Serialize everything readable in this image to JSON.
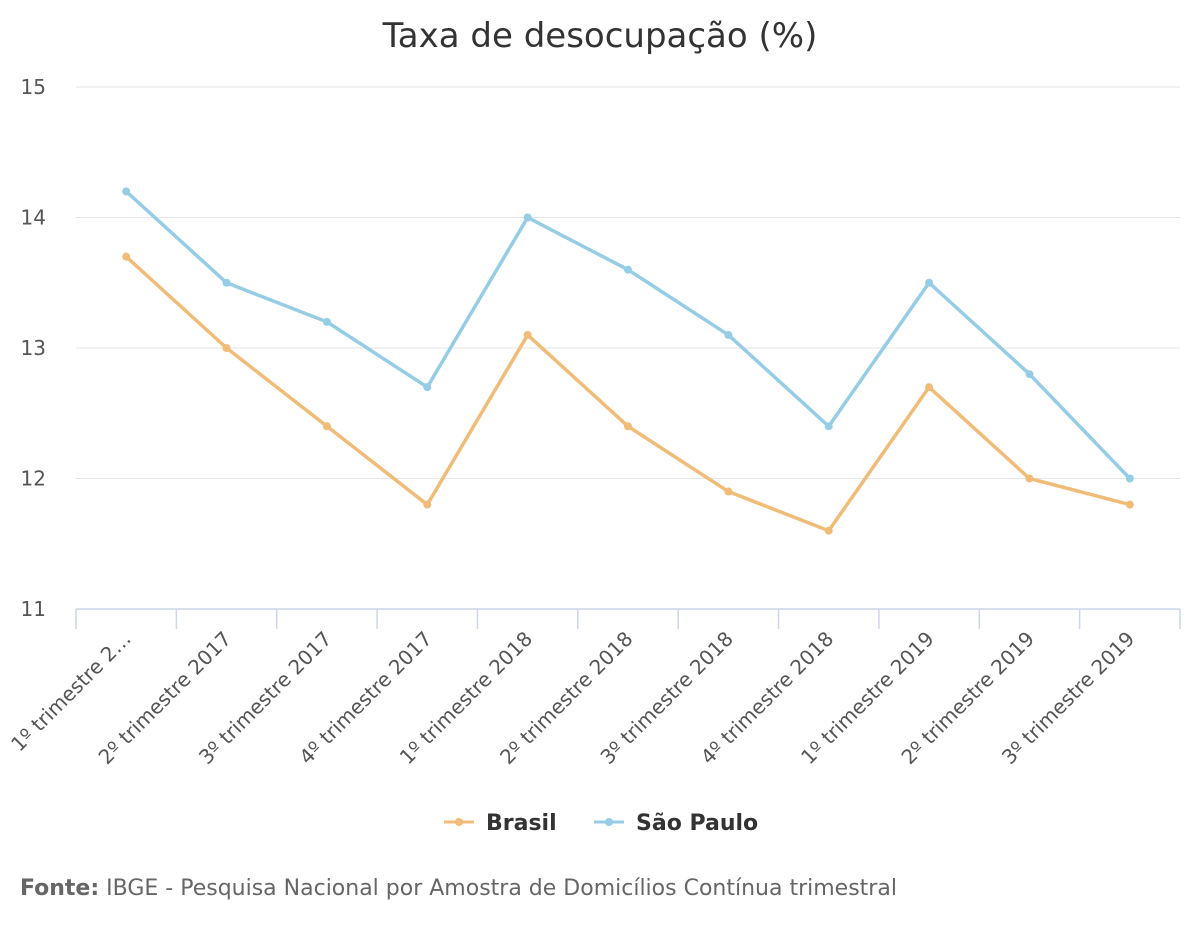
{
  "chart_data": {
    "type": "line",
    "title": "Taxa de desocupação (%)",
    "categories": [
      "1º trimestre 2…",
      "2º trimestre 2017",
      "3º trimestre 2017",
      "4º trimestre 2017",
      "1º trimestre 2018",
      "2º trimestre 2018",
      "3º trimestre 2018",
      "4º trimestre 2018",
      "1º trimestre 2019",
      "2º trimestre 2019",
      "3º trimestre 2019"
    ],
    "series": [
      {
        "name": "Brasil",
        "color": "#F0BC78",
        "values": [
          13.7,
          13.0,
          12.4,
          11.8,
          13.1,
          12.4,
          11.9,
          11.6,
          12.7,
          12.0,
          11.8
        ]
      },
      {
        "name": "São Paulo",
        "color": "#96CDE6",
        "values": [
          14.2,
          13.5,
          13.2,
          12.7,
          14.0,
          13.6,
          13.1,
          12.4,
          13.5,
          12.8,
          12.0
        ]
      }
    ],
    "yticks": [
      "11",
      "12",
      "13",
      "14",
      "15"
    ],
    "ylim": [
      11,
      15
    ],
    "xlabel": "",
    "ylabel": "",
    "grid": true,
    "legend": "bottom-center"
  },
  "source": {
    "label": "Fonte:",
    "text": " IBGE - Pesquisa Nacional por Amostra de Domicílios Contínua trimestral"
  }
}
